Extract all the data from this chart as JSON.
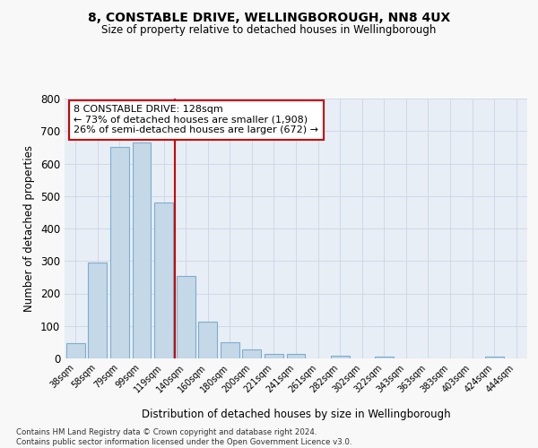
{
  "title": "8, CONSTABLE DRIVE, WELLINGBOROUGH, NN8 4UX",
  "subtitle": "Size of property relative to detached houses in Wellingborough",
  "xlabel": "Distribution of detached houses by size in Wellingborough",
  "ylabel": "Number of detached properties",
  "bar_labels": [
    "38sqm",
    "58sqm",
    "79sqm",
    "99sqm",
    "119sqm",
    "140sqm",
    "160sqm",
    "180sqm",
    "200sqm",
    "221sqm",
    "241sqm",
    "261sqm",
    "282sqm",
    "302sqm",
    "322sqm",
    "343sqm",
    "363sqm",
    "383sqm",
    "403sqm",
    "424sqm",
    "444sqm"
  ],
  "bar_values": [
    46,
    295,
    652,
    665,
    480,
    253,
    113,
    49,
    28,
    15,
    15,
    0,
    8,
    0,
    5,
    0,
    0,
    0,
    0,
    5,
    0
  ],
  "bar_color": "#c5d8e8",
  "bar_edge_color": "#7baecf",
  "vline_color": "#cc0000",
  "annotation_title": "8 CONSTABLE DRIVE: 128sqm",
  "annotation_line1": "← 73% of detached houses are smaller (1,908)",
  "annotation_line2": "26% of semi-detached houses are larger (672) →",
  "annotation_box_color": "#ffffff",
  "annotation_border_color": "#cc0000",
  "ylim": [
    0,
    800
  ],
  "yticks": [
    0,
    100,
    200,
    300,
    400,
    500,
    600,
    700,
    800
  ],
  "grid_color": "#d0d8e8",
  "plot_bg_color": "#e8eef5",
  "fig_bg_color": "#f8f8f8",
  "footer_line1": "Contains HM Land Registry data © Crown copyright and database right 2024.",
  "footer_line2": "Contains public sector information licensed under the Open Government Licence v3.0."
}
